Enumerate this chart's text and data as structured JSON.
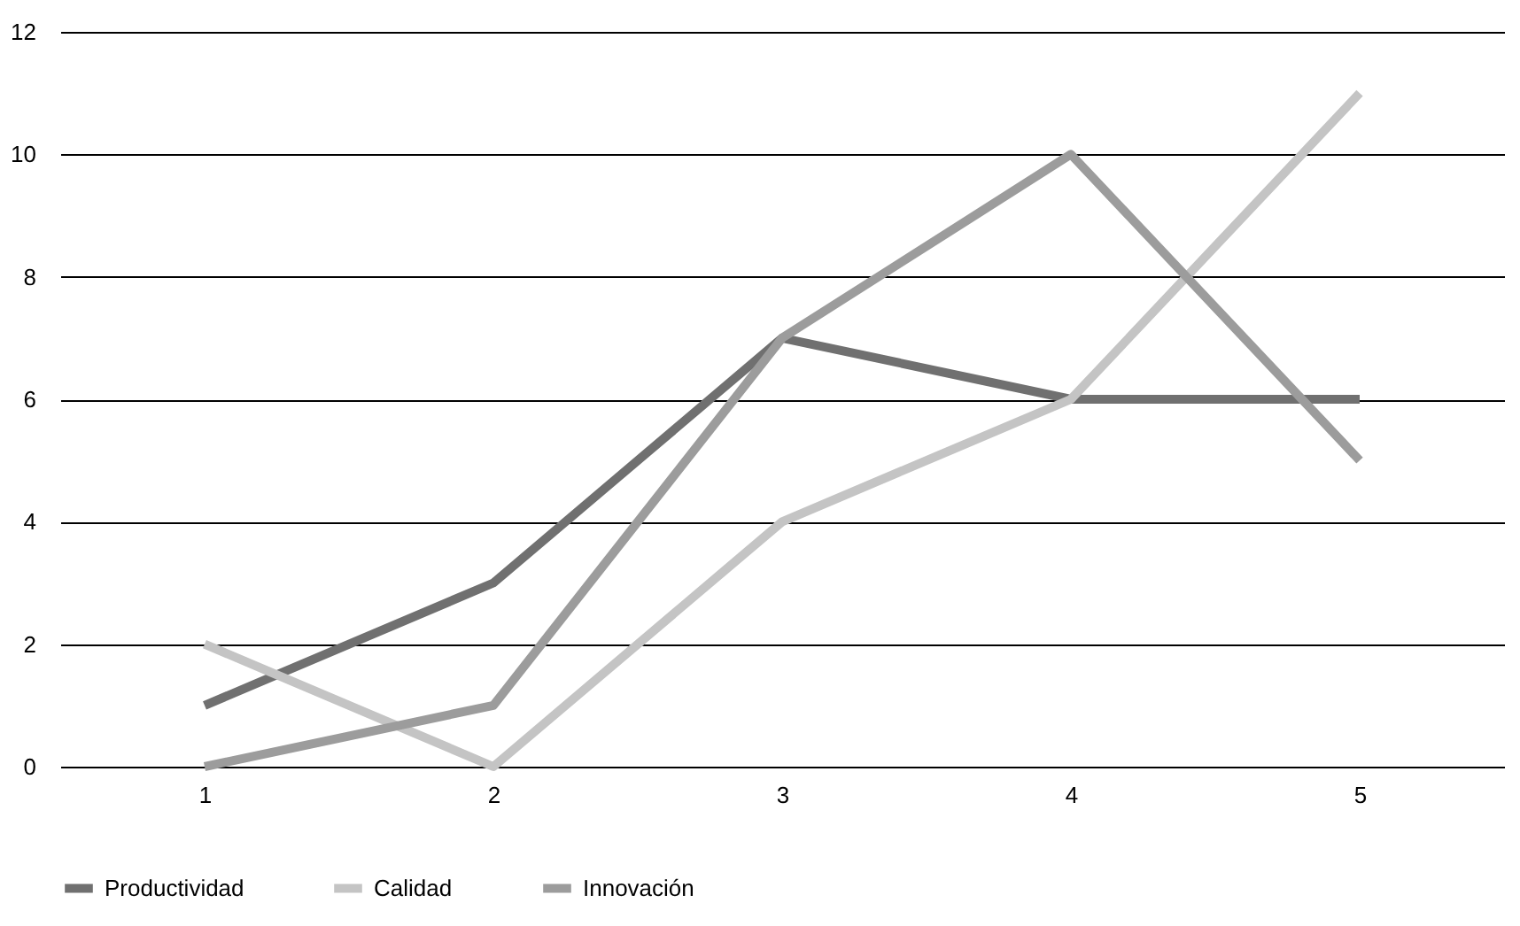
{
  "chart_data": {
    "type": "line",
    "categories": [
      "1",
      "2",
      "3",
      "4",
      "5"
    ],
    "series": [
      {
        "name": "Productividad",
        "color": "#707070",
        "values": [
          1,
          3,
          7,
          6,
          6
        ]
      },
      {
        "name": "Calidad",
        "color": "#c4c4c4",
        "values": [
          2,
          0,
          4,
          6,
          11
        ]
      },
      {
        "name": "Innovación",
        "color": "#9c9c9c",
        "values": [
          0,
          1,
          7,
          10,
          5
        ]
      }
    ],
    "ylim": [
      0,
      12
    ],
    "yticks": [
      0,
      2,
      4,
      6,
      8,
      10,
      12
    ],
    "grid": "y",
    "legend": "bottom",
    "marker": "none",
    "line_style": "solid"
  }
}
